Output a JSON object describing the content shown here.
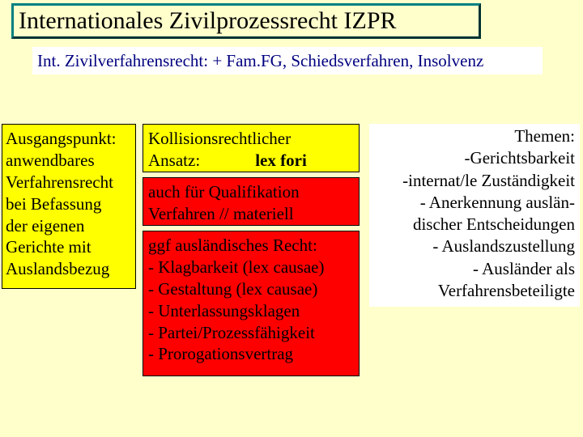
{
  "colors": {
    "page_bg": "#ffffcc",
    "title_border_light": "#008080",
    "title_border_dark": "#003333",
    "yellow": "#ffff00",
    "red": "#ff0000",
    "white": "#ffffff",
    "navy": "#000080",
    "black": "#000000"
  },
  "title": "Internationales Zivilprozessrecht IZPR",
  "subtitle": "Int. Zivilverfahrensrecht: + Fam.FG, Schiedsverfahren, Insolvenz",
  "left_box": {
    "lines": [
      "Ausgangspunkt:",
      "anwendbares",
      "Verfahrensrecht",
      "bei Befassung",
      "der eigenen",
      "Gerichte mit",
      "Auslandsbezug"
    ]
  },
  "mid_a": {
    "line1": "Kollisionsrechtlicher",
    "line2_label": "Ansatz:",
    "line2_value": "lex fori"
  },
  "mid_b": {
    "lines": [
      "auch für Qualifikation",
      "Verfahren // materiell"
    ]
  },
  "mid_c": {
    "lines": [
      "ggf ausländisches Recht:",
      "- Klagbarkeit (lex causae)",
      "- Gestaltung (lex causae)",
      "- Unterlassungsklagen",
      "- Partei/Prozessfähigkeit",
      "- Prorogationsvertrag"
    ]
  },
  "right_box": {
    "lines": [
      "Themen:",
      "-Gerichtsbarkeit",
      "-internat/le Zuständigkeit",
      "- Anerkennung auslän-",
      "discher Entscheidungen",
      "- Auslandszustellung",
      "- Ausländer als",
      "Verfahrensbeteiligte"
    ]
  }
}
